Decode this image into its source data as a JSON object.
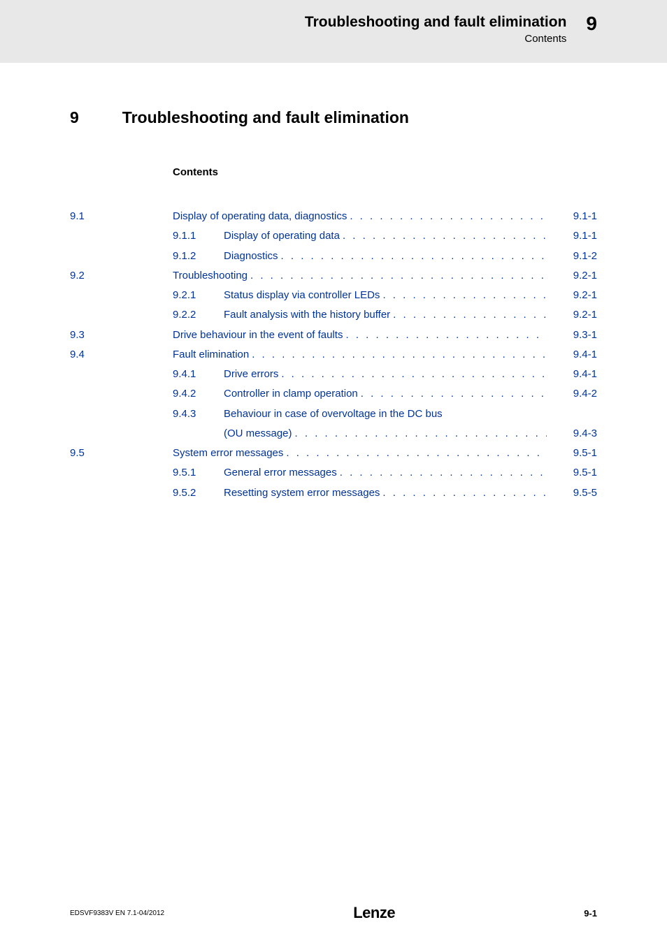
{
  "header": {
    "title": "Troubleshooting and fault elimination",
    "subtitle": "Contents",
    "chapter_num": "9"
  },
  "main": {
    "chapter_num": "9",
    "title": "Troubleshooting and fault elimination",
    "contents_label": "Contents"
  },
  "toc": [
    {
      "level": 1,
      "num": "9.1",
      "text": "Display of operating data, diagnostics",
      "page": "9.1-1"
    },
    {
      "level": 2,
      "num": "9.1.1",
      "text": "Display of operating data",
      "page": "9.1-1"
    },
    {
      "level": 2,
      "num": "9.1.2",
      "text": "Diagnostics",
      "page": "9.1-2"
    },
    {
      "level": 1,
      "num": "9.2",
      "text": "Troubleshooting",
      "page": "9.2-1"
    },
    {
      "level": 2,
      "num": "9.2.1",
      "text": "Status display via controller LEDs",
      "page": "9.2-1"
    },
    {
      "level": 2,
      "num": "9.2.2",
      "text": "Fault analysis with the history buffer",
      "page": "9.2-1"
    },
    {
      "level": 1,
      "num": "9.3",
      "text": "Drive behaviour in the event of faults",
      "page": "9.3-1"
    },
    {
      "level": 1,
      "num": "9.4",
      "text": "Fault elimination",
      "page": "9.4-1"
    },
    {
      "level": 2,
      "num": "9.4.1",
      "text": "Drive errors",
      "page": "9.4-1"
    },
    {
      "level": 2,
      "num": "9.4.2",
      "text": "Controller in clamp operation",
      "page": "9.4-2"
    },
    {
      "level": 2,
      "num": "9.4.3",
      "text": "Behaviour in case of overvoltage in the DC bus",
      "page": "",
      "continuation": "(OU message)",
      "cont_page": "9.4-3"
    },
    {
      "level": 1,
      "num": "9.5",
      "text": "System error messages",
      "page": "9.5-1"
    },
    {
      "level": 2,
      "num": "9.5.1",
      "text": "General error messages",
      "page": "9.5-1"
    },
    {
      "level": 2,
      "num": "9.5.2",
      "text": "Resetting system error messages",
      "page": "9.5-5"
    }
  ],
  "footer": {
    "left": "EDSVF9383V EN 7.1-04/2012",
    "center": "Lenze",
    "right": "9-1"
  },
  "colors": {
    "link_blue": "#003399",
    "header_grey": "#e8e8e8",
    "text_black": "#000000"
  }
}
